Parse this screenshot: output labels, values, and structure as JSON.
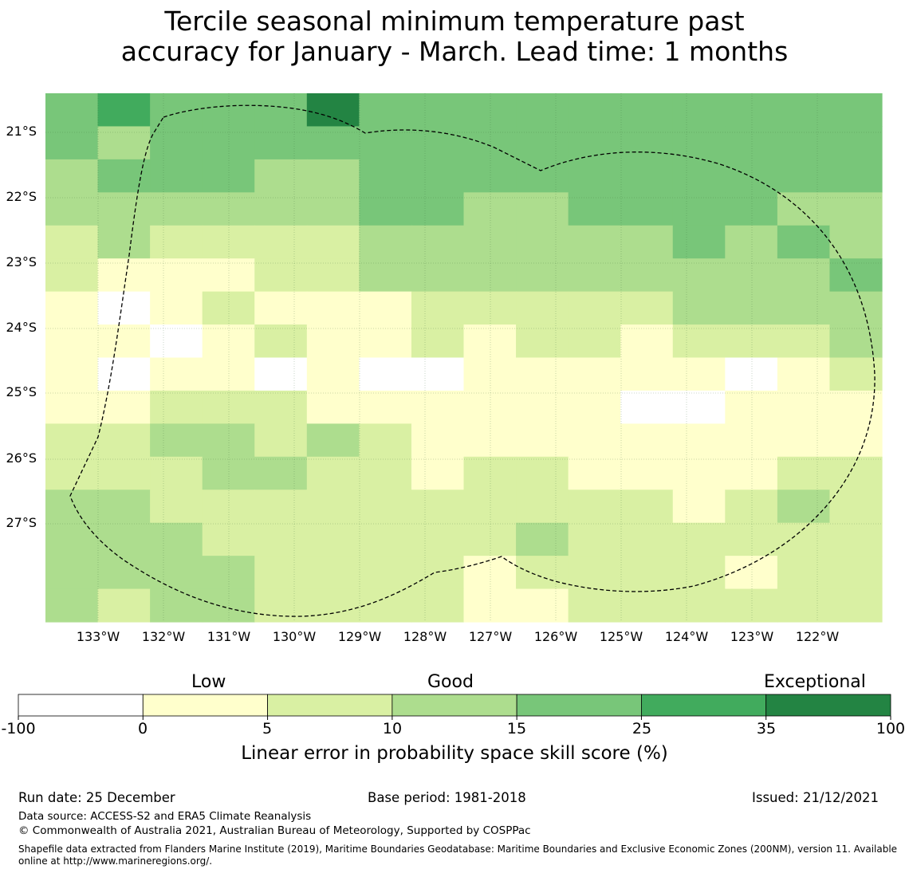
{
  "title": {
    "line1": "Tercile seasonal minimum temperature past",
    "line2": "accuracy for January - March. Lead time: 1 months"
  },
  "map": {
    "lat_labels": [
      "21°S",
      "22°S",
      "23°S",
      "24°S",
      "25°S",
      "26°S",
      "27°S"
    ],
    "lon_labels": [
      "133°W",
      "132°W",
      "131°W",
      "130°W",
      "129°W",
      "128°W",
      "127°W",
      "126°W",
      "125°W",
      "124°W",
      "123°W",
      "122°W"
    ],
    "skill_grid": [
      [
        4,
        5,
        4,
        4,
        4,
        6,
        4,
        4,
        4,
        4,
        4,
        4,
        4,
        4,
        4,
        4
      ],
      [
        4,
        3,
        4,
        4,
        4,
        4,
        4,
        4,
        4,
        4,
        4,
        4,
        4,
        4,
        4,
        4
      ],
      [
        3,
        4,
        4,
        4,
        3,
        3,
        4,
        4,
        4,
        4,
        4,
        4,
        4,
        4,
        4,
        4
      ],
      [
        3,
        3,
        3,
        3,
        3,
        3,
        4,
        4,
        3,
        3,
        4,
        4,
        4,
        4,
        3,
        3
      ],
      [
        2,
        3,
        2,
        2,
        2,
        2,
        3,
        3,
        3,
        3,
        3,
        3,
        4,
        3,
        4,
        3
      ],
      [
        2,
        1,
        1,
        1,
        2,
        2,
        3,
        3,
        3,
        3,
        3,
        3,
        3,
        3,
        3,
        4
      ],
      [
        1,
        0,
        1,
        2,
        1,
        1,
        1,
        2,
        2,
        2,
        2,
        2,
        3,
        3,
        3,
        3
      ],
      [
        1,
        1,
        0,
        1,
        2,
        1,
        1,
        2,
        1,
        2,
        2,
        1,
        2,
        2,
        2,
        3
      ],
      [
        1,
        0,
        1,
        1,
        0,
        1,
        0,
        0,
        1,
        1,
        1,
        1,
        1,
        0,
        1,
        2
      ],
      [
        1,
        1,
        2,
        2,
        2,
        1,
        1,
        1,
        1,
        1,
        1,
        0,
        0,
        1,
        1,
        1
      ],
      [
        2,
        2,
        3,
        3,
        2,
        3,
        2,
        1,
        1,
        1,
        1,
        1,
        1,
        1,
        1,
        1
      ],
      [
        2,
        2,
        2,
        3,
        3,
        2,
        2,
        1,
        2,
        2,
        1,
        1,
        1,
        1,
        2,
        2
      ],
      [
        3,
        3,
        2,
        2,
        2,
        2,
        2,
        2,
        2,
        2,
        2,
        2,
        1,
        2,
        3,
        2
      ],
      [
        3,
        3,
        3,
        2,
        2,
        2,
        2,
        2,
        2,
        3,
        2,
        2,
        2,
        2,
        2,
        2
      ],
      [
        3,
        3,
        3,
        3,
        2,
        2,
        2,
        2,
        1,
        2,
        2,
        2,
        2,
        1,
        2,
        2
      ],
      [
        3,
        2,
        3,
        3,
        2,
        2,
        2,
        2,
        1,
        1,
        2,
        2,
        2,
        2,
        2,
        2
      ]
    ],
    "eez_boundary": "dashed"
  },
  "colorbar": {
    "colors": [
      "#ffffff",
      "#ffffcc",
      "#d9f0a3",
      "#addd8e",
      "#78c679",
      "#41ab5d",
      "#238443"
    ],
    "ticks": [
      "-100",
      "0",
      "5",
      "10",
      "15",
      "25",
      "35",
      "100"
    ],
    "categories": [
      "Low",
      "Good",
      "Exceptional"
    ],
    "label": "Linear error in probability space skill score (%)"
  },
  "footer": {
    "run_date": "Run date: 25 December",
    "base_period": "Base period: 1981-2018",
    "issued": "Issued: 21/12/2021",
    "data_source": "Data source: ACCESS-S2 and ERA5 Climate Reanalysis",
    "copyright": "© Commonwealth of Australia 2021, Australian Bureau of Meteorology, Supported by COSPPac",
    "shapefile": "Shapefile data extracted from Flanders Marine Institute (2019), Maritime Boundaries Geodatabase: Maritime Boundaries and Exclusive Economic Zones (200NM), version 11. Available online at http://www.marineregions.org/."
  }
}
